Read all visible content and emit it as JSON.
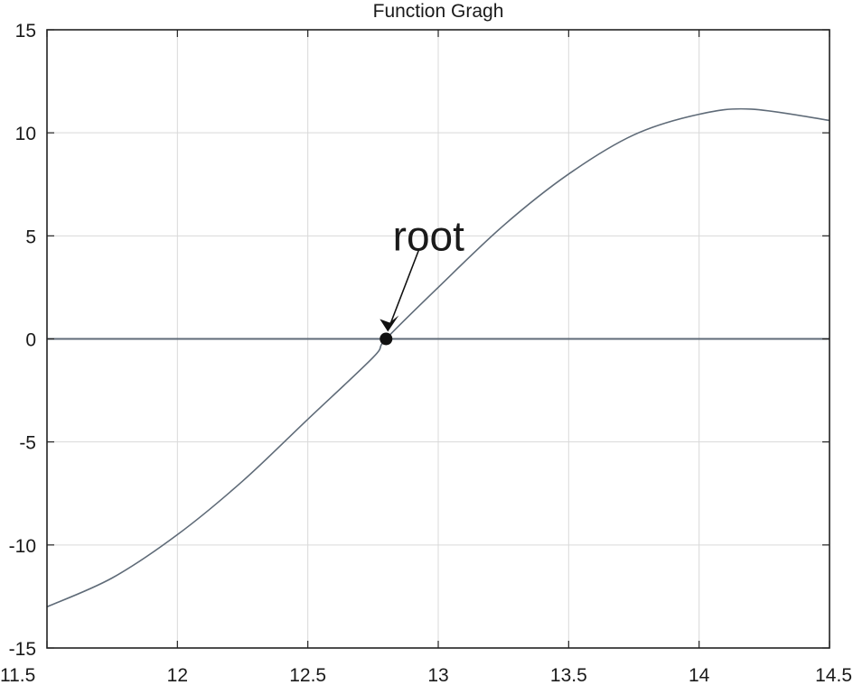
{
  "chart_data": {
    "type": "line",
    "title": "Function Gragh",
    "xlabel": "",
    "ylabel": "",
    "xlim": [
      11.5,
      14.5
    ],
    "ylim": [
      -15,
      15
    ],
    "xticks": [
      11.5,
      12,
      12.5,
      13,
      13.5,
      14,
      14.5
    ],
    "xtick_labels": [
      "11.5",
      "12",
      "12.5",
      "13",
      "13.5",
      "14",
      "14.5"
    ],
    "yticks": [
      -15,
      -10,
      -5,
      0,
      5,
      10,
      15
    ],
    "ytick_labels": [
      "-15",
      "-10",
      "-5",
      "0",
      "5",
      "10",
      "15"
    ],
    "grid": true,
    "legend": "none",
    "colors": {
      "curve": "#5f6b78",
      "zero_line": "#5f6b78",
      "grid": "#d9d9d9",
      "marker": "#111111"
    },
    "series": [
      {
        "name": "",
        "x": [
          11.5,
          11.75,
          12.0,
          12.25,
          12.5,
          12.75,
          12.8,
          13.0,
          13.25,
          13.5,
          13.75,
          14.0,
          14.2,
          14.5
        ],
        "y": [
          -13.0,
          -11.6,
          -9.5,
          -6.9,
          -3.9,
          -0.9,
          0.0,
          2.5,
          5.5,
          8.0,
          9.9,
          10.9,
          11.15,
          10.6
        ]
      }
    ],
    "reference_lines": [
      {
        "axis": "y",
        "value": 0
      }
    ],
    "annotations": [
      {
        "text": "root",
        "point": [
          12.8,
          0
        ]
      }
    ]
  }
}
